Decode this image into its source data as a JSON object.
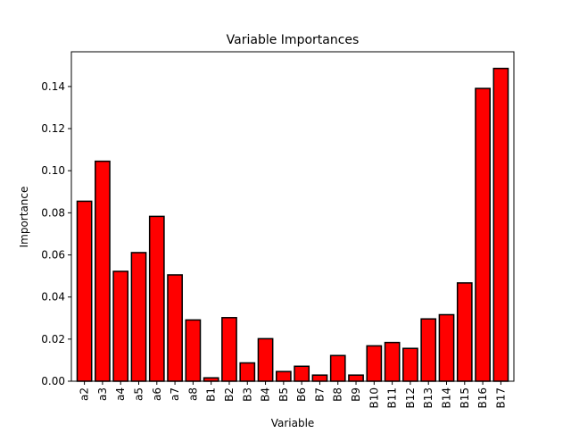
{
  "chart_data": {
    "type": "bar",
    "title": "Variable Importances",
    "xlabel": "Variable",
    "ylabel": "Importance",
    "categories": [
      "a2",
      "a3",
      "a4",
      "a5",
      "a6",
      "a7",
      "a8",
      "B1",
      "B2",
      "B3",
      "B4",
      "B5",
      "B6",
      "B7",
      "B8",
      "B9",
      "B10",
      "B11",
      "B12",
      "B13",
      "B14",
      "B15",
      "B16",
      "B17"
    ],
    "values": [
      0.0855,
      0.1045,
      0.0522,
      0.0611,
      0.0783,
      0.0505,
      0.0291,
      0.0016,
      0.0302,
      0.0087,
      0.0202,
      0.0046,
      0.0071,
      0.0029,
      0.0122,
      0.0029,
      0.0168,
      0.0184,
      0.0156,
      0.0296,
      0.0316,
      0.0467,
      0.1391,
      0.1486
    ],
    "ylim": [
      0,
      0.1565
    ],
    "yticks": [
      "0.00",
      "0.02",
      "0.04",
      "0.06",
      "0.08",
      "0.10",
      "0.12",
      "0.14"
    ],
    "grid": false,
    "colors": {
      "bar_fill": "#ff0000",
      "bar_edge": "#000000"
    }
  }
}
